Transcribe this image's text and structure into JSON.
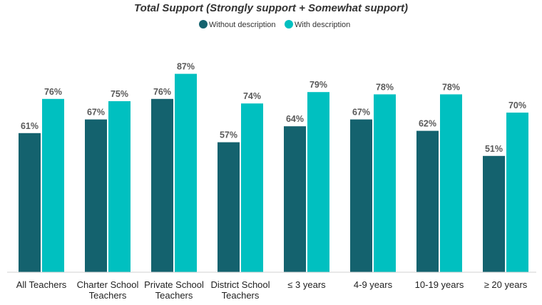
{
  "chart_data": {
    "type": "bar",
    "title": "Total Support (Strongly support + Somewhat support)",
    "categories": [
      [
        "All Teachers"
      ],
      [
        "Charter School",
        "Teachers"
      ],
      [
        "Private School",
        "Teachers"
      ],
      [
        "District School",
        "Teachers"
      ],
      [
        "≤ 3 years"
      ],
      [
        "4-9 years"
      ],
      [
        "10-19 years"
      ],
      [
        "≥ 20 years"
      ]
    ],
    "series": [
      {
        "name": "Without description",
        "color": "#14626e",
        "values": [
          61,
          67,
          76,
          57,
          64,
          67,
          62,
          51
        ]
      },
      {
        "name": "With description",
        "color": "#00c0c0",
        "values": [
          76,
          75,
          87,
          74,
          79,
          78,
          78,
          70
        ]
      }
    ],
    "value_suffix": "%",
    "ylim": [
      0,
      100
    ],
    "grid": false,
    "legend_position": "top-center"
  }
}
